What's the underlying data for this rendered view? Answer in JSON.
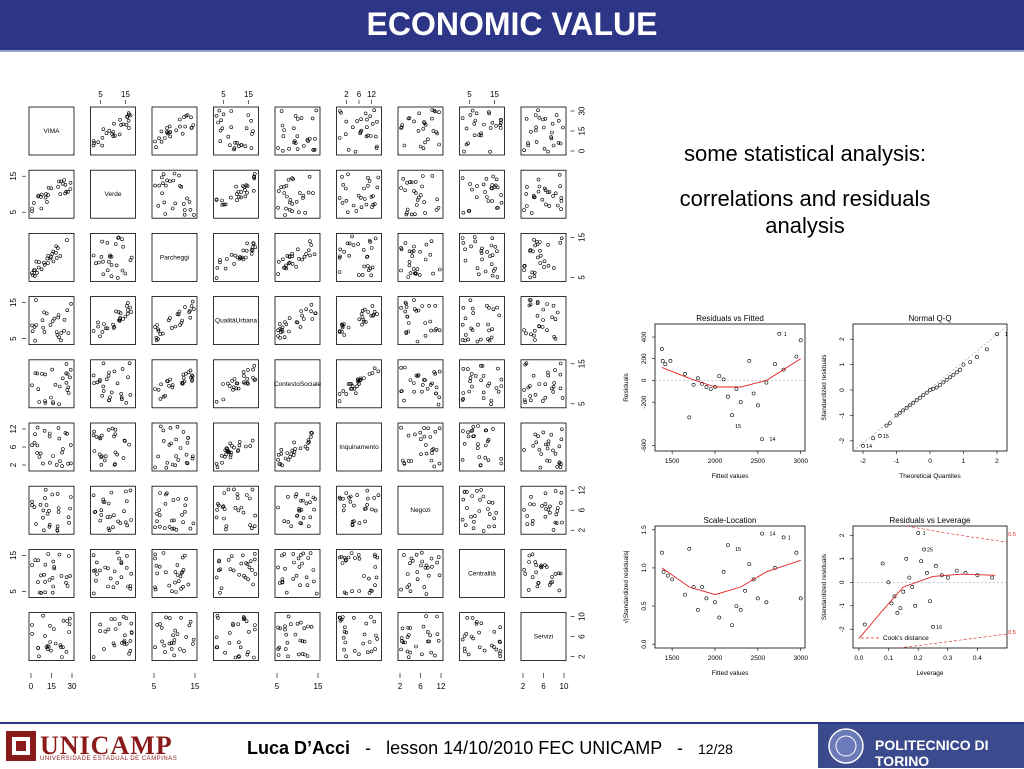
{
  "slide": {
    "title": "ECONOMIC VALUE",
    "text1": "some statistical analysis:",
    "text2": "correlations and residuals analysis"
  },
  "footer": {
    "author": "Luca D’Acci",
    "separator": "-",
    "lesson": "lesson 14/10/2010  FEC UNICAMP",
    "page": "12/28",
    "logo_left": "UNICAMP",
    "logo_left_sub": "UNIVERSIDADE ESTADUAL DE CAMPINAS",
    "logo_right": "POLITECNICO DI TORINO"
  },
  "colors": {
    "title_bg": "#2d3587",
    "fit_line": "#e02020",
    "points": "#000000"
  },
  "chart_data": [
    {
      "type": "scatter",
      "variables": [
        "VIMA",
        "Verde",
        "Parcheggi",
        "QualitàUrbana",
        "ContestoSociale",
        "Inquinamento",
        "Negozi",
        "Centralità",
        "Servizi"
      ],
      "top_ticks": [
        [
          "5",
          "15"
        ],
        [
          "5",
          "15"
        ],
        [
          "2",
          "6",
          "12"
        ],
        [
          "5",
          "15"
        ]
      ],
      "right_ticks": [
        [
          "0",
          "15",
          "30"
        ],
        [
          "5",
          "15"
        ],
        [
          "5",
          "15"
        ],
        [
          "2",
          "6",
          "12"
        ],
        [
          "2",
          "6",
          "10"
        ]
      ],
      "left_ticks": [
        [
          "5",
          "15"
        ],
        [
          "5",
          "15"
        ],
        [
          "2",
          "6",
          "12"
        ],
        [
          "5",
          "15"
        ]
      ],
      "bottom_ticks": [
        [
          "0",
          "15",
          "30"
        ],
        [
          "5",
          "15"
        ],
        [
          "5",
          "15"
        ],
        [
          "2",
          "6",
          "12"
        ],
        [
          "2",
          "6",
          "10"
        ]
      ]
    },
    {
      "type": "scatter",
      "title": "Residuals vs Fitted",
      "xlabel": "Fitted values",
      "ylabel": "Residuals",
      "xlim": [
        1300,
        3050
      ],
      "ylim": [
        -650,
        520
      ],
      "xticks": [
        "1500",
        "2000",
        "2500",
        "3000"
      ],
      "yticks": [
        "-600",
        "-200",
        "0",
        "200",
        "400"
      ],
      "labels": [
        {
          "text": "1",
          "x": 2750,
          "y": 430
        },
        {
          "text": "15",
          "x": 2200,
          "y": -420
        },
        {
          "text": "14",
          "x": 2600,
          "y": -540
        }
      ],
      "x": [
        1380,
        1390,
        1420,
        1480,
        1650,
        1750,
        1800,
        1900,
        1950,
        2050,
        2100,
        2150,
        2200,
        2300,
        2400,
        2450,
        2500,
        2550,
        2700,
        2750,
        2800,
        2950,
        3000,
        1850,
        2250,
        2600,
        2000,
        1700
      ],
      "y": [
        290,
        180,
        150,
        180,
        60,
        -40,
        20,
        -60,
        -80,
        40,
        10,
        -150,
        -320,
        -200,
        180,
        -120,
        -230,
        -540,
        150,
        430,
        100,
        220,
        370,
        -30,
        -80,
        -20,
        -60,
        -340
      ],
      "fit": [
        [
          1380,
          120
        ],
        [
          1700,
          20
        ],
        [
          2000,
          -60
        ],
        [
          2300,
          -60
        ],
        [
          2600,
          0
        ],
        [
          3000,
          200
        ]
      ]
    },
    {
      "type": "scatter",
      "title": "Normal Q-Q",
      "xlabel": "Theoretical Quantiles",
      "ylabel": "Standardized residuals",
      "xlim": [
        -2.3,
        2.3
      ],
      "ylim": [
        -2.4,
        2.6
      ],
      "xticks": [
        "-2",
        "-1",
        "0",
        "1",
        "2"
      ],
      "yticks": [
        "-2",
        "-1",
        "0",
        "1",
        "2"
      ],
      "labels": [
        {
          "text": "1",
          "x": 2.1,
          "y": 2.2
        },
        {
          "text": "15",
          "x": -1.5,
          "y": -1.8
        },
        {
          "text": "14",
          "x": -2.0,
          "y": -2.2
        }
      ],
      "x": [
        -2.0,
        -1.7,
        -1.5,
        -1.3,
        -1.2,
        -1.0,
        -0.9,
        -0.8,
        -0.7,
        -0.6,
        -0.5,
        -0.4,
        -0.3,
        -0.2,
        -0.1,
        0.0,
        0.1,
        0.2,
        0.3,
        0.4,
        0.5,
        0.6,
        0.7,
        0.8,
        0.9,
        1.0,
        1.2,
        1.4,
        1.7,
        2.0
      ],
      "y": [
        -2.2,
        -1.9,
        -1.8,
        -1.4,
        -1.3,
        -1.0,
        -0.9,
        -0.8,
        -0.7,
        -0.6,
        -0.5,
        -0.4,
        -0.3,
        -0.2,
        -0.1,
        0.0,
        0.05,
        0.1,
        0.2,
        0.3,
        0.4,
        0.5,
        0.6,
        0.7,
        0.8,
        1.0,
        1.1,
        1.3,
        1.6,
        2.2
      ],
      "line": [
        [
          -2.3,
          -2.4
        ],
        [
          2.3,
          2.5
        ]
      ]
    },
    {
      "type": "scatter",
      "title": "Scale-Location",
      "xlabel": "Fitted values",
      "ylabel": "√|Standardized residuals|",
      "xlim": [
        1300,
        3050
      ],
      "ylim": [
        -0.05,
        1.55
      ],
      "xticks": [
        "1500",
        "2000",
        "2500",
        "3000"
      ],
      "yticks": [
        "0.0",
        "0.5",
        "1.0",
        "1.5"
      ],
      "labels": [
        {
          "text": "14",
          "x": 2600,
          "y": 1.45
        },
        {
          "text": "15",
          "x": 2200,
          "y": 1.25
        },
        {
          "text": "1",
          "x": 2800,
          "y": 1.4
        }
      ],
      "x": [
        1380,
        1400,
        1450,
        1500,
        1650,
        1750,
        1800,
        1850,
        1900,
        2000,
        2050,
        2100,
        2150,
        2200,
        2250,
        2300,
        2400,
        2450,
        2500,
        2550,
        2600,
        2700,
        2800,
        2950,
        3000,
        1700,
        2350
      ],
      "y": [
        1.2,
        0.95,
        0.9,
        0.85,
        0.65,
        0.75,
        0.45,
        0.75,
        0.6,
        0.55,
        0.35,
        0.95,
        1.3,
        0.25,
        0.5,
        0.45,
        1.05,
        0.85,
        0.6,
        1.45,
        0.55,
        1.0,
        1.4,
        1.2,
        0.6,
        1.25,
        0.7
      ],
      "fit": [
        [
          1380,
          1.0
        ],
        [
          1700,
          0.75
        ],
        [
          2000,
          0.65
        ],
        [
          2300,
          0.75
        ],
        [
          2600,
          0.95
        ],
        [
          3000,
          1.1
        ]
      ]
    },
    {
      "type": "scatter",
      "title": "Residuals vs Leverage",
      "xlabel": "Leverage",
      "ylabel": "Standardized residuals",
      "xlim": [
        -0.02,
        0.5
      ],
      "ylim": [
        -2.8,
        2.4
      ],
      "xticks": [
        "0.0",
        "0.1",
        "0.2",
        "0.3",
        "0.4"
      ],
      "yticks": [
        "-2",
        "-1",
        "0",
        "1",
        "2"
      ],
      "legend": "Cook's distance",
      "cook_labels": [
        "0.5",
        "0.5"
      ],
      "labels": [
        {
          "text": "1",
          "x": 0.2,
          "y": 2.1
        },
        {
          "text": "25",
          "x": 0.22,
          "y": 1.4
        },
        {
          "text": "16",
          "x": 0.25,
          "y": -1.9
        }
      ],
      "x": [
        0.02,
        0.08,
        0.1,
        0.12,
        0.13,
        0.15,
        0.16,
        0.17,
        0.18,
        0.19,
        0.2,
        0.21,
        0.22,
        0.23,
        0.24,
        0.25,
        0.26,
        0.28,
        0.3,
        0.33,
        0.36,
        0.4,
        0.45,
        0.14,
        0.11
      ],
      "y": [
        -1.8,
        0.8,
        0.0,
        -0.6,
        -1.3,
        -0.4,
        1.0,
        0.2,
        -0.2,
        -1.0,
        2.1,
        0.9,
        1.4,
        0.4,
        -0.8,
        -1.9,
        0.7,
        0.3,
        0.2,
        0.5,
        0.4,
        0.3,
        0.2,
        -1.1,
        -0.9
      ],
      "fit": [
        [
          0.0,
          -2.4
        ],
        [
          0.08,
          -1.2
        ],
        [
          0.15,
          -0.2
        ],
        [
          0.25,
          0.25
        ],
        [
          0.35,
          0.35
        ],
        [
          0.46,
          0.3
        ]
      ]
    }
  ]
}
